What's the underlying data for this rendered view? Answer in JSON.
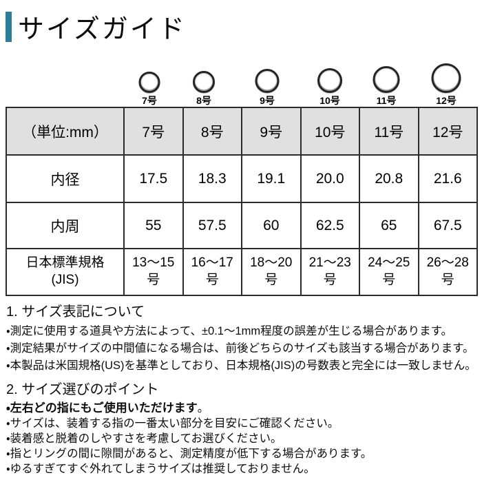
{
  "page": {
    "title": "サイズガイド"
  },
  "colors": {
    "accent": "#2b7e97",
    "table_header_bg": "#e0e0e0",
    "table_border": "#2b2b2b"
  },
  "rings": [
    {
      "label": "7号"
    },
    {
      "label": "8号"
    },
    {
      "label": "9号"
    },
    {
      "label": "10号"
    },
    {
      "label": "11号"
    },
    {
      "label": "12号"
    }
  ],
  "size_table": {
    "unit_header": "（単位:mm）",
    "size_columns": [
      "7号",
      "8号",
      "9号",
      "10号",
      "11号",
      "12号"
    ],
    "inner_diameter": {
      "label": "内径",
      "values": [
        "17.5",
        "18.3",
        "19.1",
        "20.0",
        "20.8",
        "21.6"
      ]
    },
    "inner_circumference": {
      "label": "内周",
      "values": [
        "55",
        "57.5",
        "60",
        "62.5",
        "65",
        "67.5"
      ]
    },
    "jis_standard": {
      "label": "日本標準規格\n(JIS)",
      "values": [
        "13〜15\n号",
        "16〜17\n号",
        "18〜20\n号",
        "21〜23\n号",
        "24〜25\n号",
        "26〜28\n号"
      ]
    }
  },
  "notes": {
    "section1": {
      "heading": "1. サイズ表記について",
      "bullets": [
        "・測定に使用する道具や方法によって、±0.1〜1mm程度の誤差が生じる場合があります。",
        "・測定結果がサイズの中間値になる場合は、前後どちらのサイズも該当する場合があります。",
        "・本製品は米国規格(US)を基準としており、日本規格(JIS)の号数表と完全には一致しません。"
      ]
    },
    "section2": {
      "heading": "2. サイズ選びのポイント",
      "bullet_bold": "・左右どの指にもご使用いただけます",
      "bullet_bold_tail": "。",
      "bullets": [
        "・サイズは、装着する指の一番太い部分を目安にご確認ください。",
        "・装着感と脱着のしやすさを考慮してお選びください。",
        "・指とリングの間に隙間があると、測定精度が低下する場合があります。",
        "・ゆるすぎてすぐ外れてしまうサイズは推奨しておりません。"
      ]
    }
  }
}
